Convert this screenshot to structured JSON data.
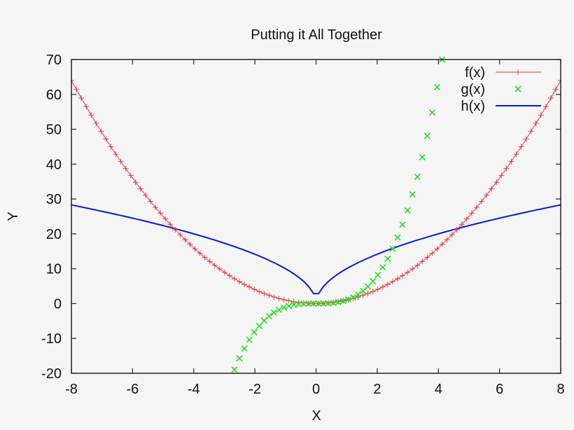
{
  "chart_data": {
    "type": "line",
    "title": "Putting it All Together",
    "xlabel": "X",
    "ylabel": "Y",
    "xlim": [
      -8,
      8
    ],
    "ylim": [
      -20,
      70
    ],
    "xticks": [
      -8,
      -6,
      -4,
      -2,
      0,
      2,
      4,
      6,
      8
    ],
    "yticks": [
      -20,
      -10,
      0,
      10,
      20,
      30,
      40,
      50,
      60,
      70
    ],
    "xtick_labels": [
      "-8",
      "-6",
      "-4",
      "-2",
      "0",
      "2",
      "4",
      "6",
      "8"
    ],
    "ytick_labels": [
      "-20",
      "-10",
      "0",
      "10",
      "20",
      "30",
      "40",
      "50",
      "60",
      "70"
    ],
    "grid": false,
    "legend_position": "top-right",
    "samples": 100,
    "series": [
      {
        "name": "f(x)",
        "expression": "x**2",
        "style": "linespoints",
        "marker": "plus",
        "color": "#e8383d"
      },
      {
        "name": "g(x)",
        "expression": "x**3",
        "style": "points",
        "marker": "cross",
        "color": "#22dd22"
      },
      {
        "name": "h(x)",
        "expression": "10*sqrt(abs(x))",
        "style": "lines",
        "marker": "none",
        "color": "#0a1ad6"
      }
    ],
    "sample_points": {
      "x": [
        -8,
        -6,
        -4,
        -2,
        0,
        2,
        4,
        6,
        8
      ],
      "f": [
        64,
        36,
        16,
        4,
        0,
        4,
        16,
        36,
        64
      ],
      "g": [
        null,
        null,
        null,
        -8,
        0,
        8,
        64,
        null,
        null
      ],
      "h": [
        28.3,
        24.5,
        20.0,
        14.1,
        2.8,
        14.1,
        20.0,
        24.5,
        28.3
      ]
    }
  },
  "legend": {
    "items": [
      {
        "label": "f(x)"
      },
      {
        "label": "g(x)"
      },
      {
        "label": "h(x)"
      }
    ]
  }
}
